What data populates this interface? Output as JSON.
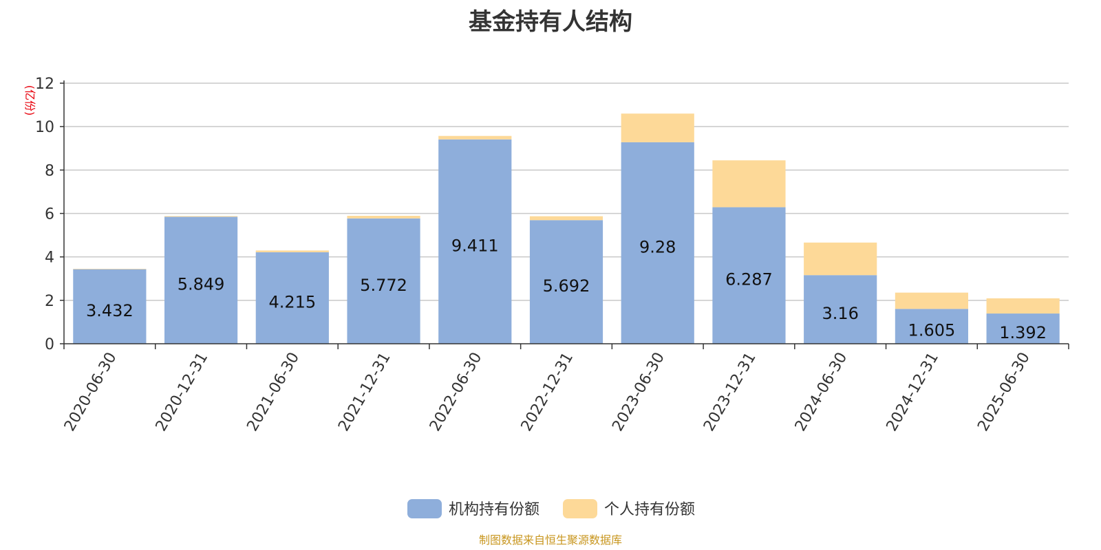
{
  "chart_data": {
    "type": "bar",
    "stacked": true,
    "title": "基金持有人结构",
    "ylabel": "(亿份)",
    "ylim": [
      0,
      12
    ],
    "yticks": [
      0,
      2,
      4,
      6,
      8,
      10,
      12
    ],
    "grid": true,
    "legend_position": "bottom-center",
    "categories": [
      "2020-06-30",
      "2020-12-31",
      "2021-06-30",
      "2021-12-31",
      "2022-06-30",
      "2022-12-31",
      "2023-06-30",
      "2023-12-31",
      "2024-06-30",
      "2024-12-31",
      "2025-06-30"
    ],
    "series": [
      {
        "name": "机构持有份额",
        "color": "#8eaedb",
        "values": [
          3.432,
          5.849,
          4.215,
          5.772,
          9.411,
          5.692,
          9.28,
          6.287,
          3.16,
          1.605,
          1.392
        ],
        "labels": [
          "3.432",
          "5.849",
          "4.215",
          "5.772",
          "9.411",
          "5.692",
          "9.28",
          "6.287",
          "3.16",
          "1.605",
          "1.392"
        ]
      },
      {
        "name": "个人持有份额",
        "color": "#fdd998",
        "values": [
          0.02,
          0.03,
          0.08,
          0.12,
          0.16,
          0.18,
          1.32,
          2.16,
          1.5,
          0.75,
          0.7
        ]
      }
    ]
  },
  "footer": {
    "source": "制图数据来自恒生聚源数据库"
  }
}
